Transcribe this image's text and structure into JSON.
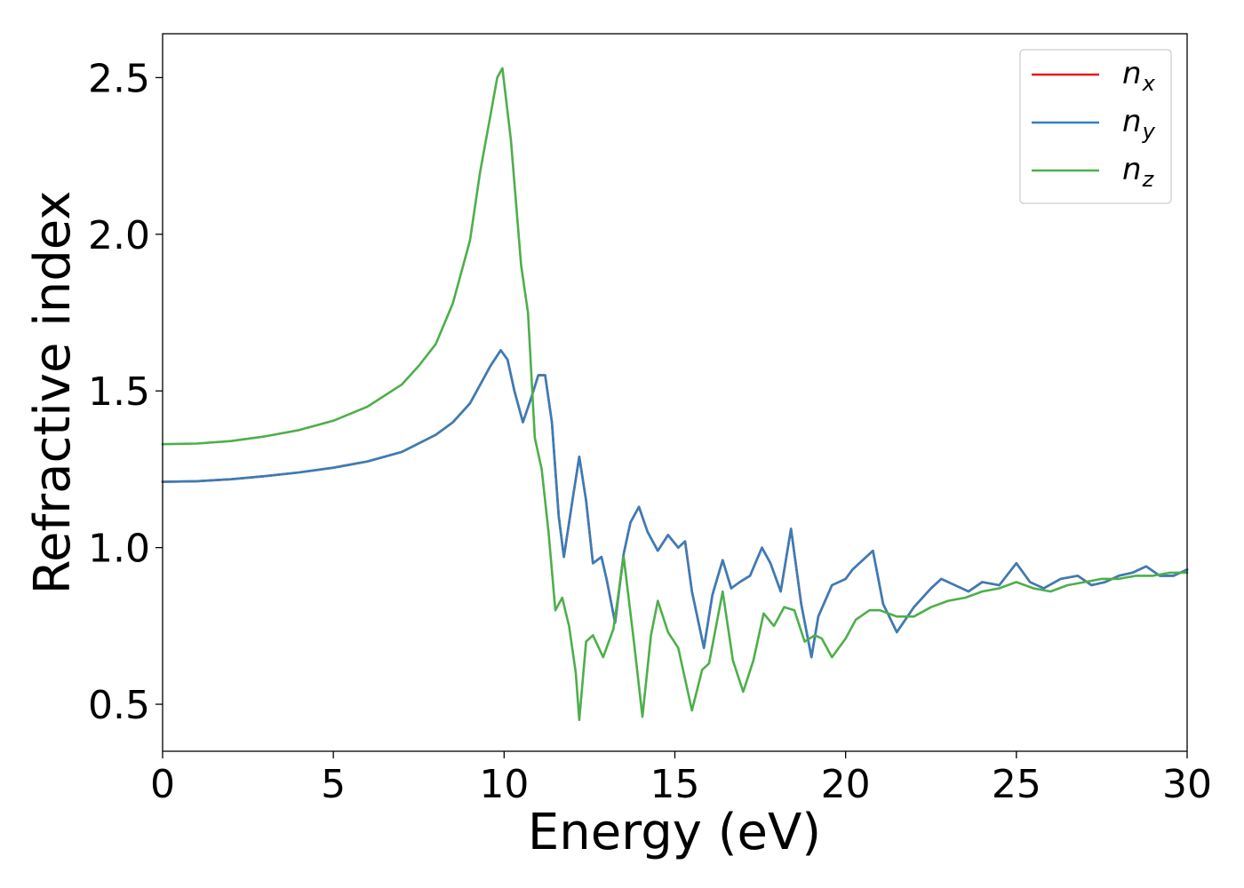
{
  "chart_data": {
    "type": "line",
    "xlabel": "Energy (eV)",
    "ylabel": "Refractive index",
    "xlim": [
      0,
      30
    ],
    "ylim": [
      0.35,
      2.64
    ],
    "xticks": [
      0,
      5,
      10,
      15,
      20,
      25,
      30
    ],
    "xtick_labels": [
      "0",
      "5",
      "10",
      "15",
      "20",
      "25",
      "30"
    ],
    "yticks": [
      0.5,
      1.0,
      1.5,
      2.0,
      2.5
    ],
    "ytick_labels": [
      "0.5",
      "1.0",
      "1.5",
      "2.0",
      "2.5"
    ],
    "grid": false,
    "legend_position": "top-right",
    "series": [
      {
        "name": "n",
        "subscript": "x",
        "color": "#e41a1c",
        "x": [
          0,
          1,
          2,
          3,
          4,
          5,
          6,
          7,
          8,
          8.5,
          9,
          9.3,
          9.6,
          9.9,
          10.1,
          10.3,
          10.55,
          10.8,
          11,
          11.2,
          11.4,
          11.6,
          11.75,
          12,
          12.2,
          12.4,
          12.6,
          12.85,
          13,
          13.25,
          13.5,
          13.7,
          13.95,
          14.2,
          14.5,
          14.8,
          15.1,
          15.3,
          15.5,
          15.85,
          16.1,
          16.4,
          16.65,
          16.9,
          17.2,
          17.55,
          17.8,
          18.1,
          18.4,
          18.7,
          19,
          19.2,
          19.6,
          20,
          20.2,
          20.5,
          20.8,
          21.1,
          21.5,
          22,
          22.5,
          22.8,
          23.2,
          23.6,
          24,
          24.5,
          25,
          25.4,
          25.8,
          26.3,
          26.8,
          27.2,
          27.6,
          28,
          28.4,
          28.8,
          29.2,
          29.6,
          30
        ],
        "y": [
          1.21,
          1.212,
          1.218,
          1.228,
          1.24,
          1.255,
          1.275,
          1.305,
          1.36,
          1.4,
          1.46,
          1.52,
          1.58,
          1.63,
          1.6,
          1.5,
          1.4,
          1.48,
          1.55,
          1.55,
          1.4,
          1.1,
          0.97,
          1.15,
          1.29,
          1.15,
          0.95,
          0.97,
          0.9,
          0.76,
          0.98,
          1.08,
          1.13,
          1.05,
          0.99,
          1.04,
          1.0,
          1.02,
          0.86,
          0.68,
          0.85,
          0.96,
          0.87,
          0.89,
          0.91,
          1.0,
          0.95,
          0.86,
          1.06,
          0.82,
          0.65,
          0.78,
          0.88,
          0.9,
          0.93,
          0.96,
          0.99,
          0.82,
          0.73,
          0.81,
          0.87,
          0.9,
          0.88,
          0.86,
          0.89,
          0.88,
          0.95,
          0.89,
          0.87,
          0.9,
          0.91,
          0.88,
          0.89,
          0.91,
          0.92,
          0.94,
          0.91,
          0.91,
          0.93
        ]
      },
      {
        "name": "n",
        "subscript": "y",
        "color": "#377eb8",
        "x": [
          0,
          1,
          2,
          3,
          4,
          5,
          6,
          7,
          8,
          8.5,
          9,
          9.3,
          9.6,
          9.9,
          10.1,
          10.3,
          10.55,
          10.8,
          11,
          11.2,
          11.4,
          11.6,
          11.75,
          12,
          12.2,
          12.4,
          12.6,
          12.85,
          13,
          13.25,
          13.5,
          13.7,
          13.95,
          14.2,
          14.5,
          14.8,
          15.1,
          15.3,
          15.5,
          15.85,
          16.1,
          16.4,
          16.65,
          16.9,
          17.2,
          17.55,
          17.8,
          18.1,
          18.4,
          18.7,
          19,
          19.2,
          19.6,
          20,
          20.2,
          20.5,
          20.8,
          21.1,
          21.5,
          22,
          22.5,
          22.8,
          23.2,
          23.6,
          24,
          24.5,
          25,
          25.4,
          25.8,
          26.3,
          26.8,
          27.2,
          27.6,
          28,
          28.4,
          28.8,
          29.2,
          29.6,
          30
        ],
        "y": [
          1.21,
          1.212,
          1.218,
          1.228,
          1.24,
          1.255,
          1.275,
          1.305,
          1.36,
          1.4,
          1.46,
          1.52,
          1.58,
          1.63,
          1.6,
          1.5,
          1.4,
          1.48,
          1.55,
          1.55,
          1.4,
          1.1,
          0.97,
          1.15,
          1.29,
          1.15,
          0.95,
          0.97,
          0.9,
          0.76,
          0.98,
          1.08,
          1.13,
          1.05,
          0.99,
          1.04,
          1.0,
          1.02,
          0.86,
          0.68,
          0.85,
          0.96,
          0.87,
          0.89,
          0.91,
          1.0,
          0.95,
          0.86,
          1.06,
          0.82,
          0.65,
          0.78,
          0.88,
          0.9,
          0.93,
          0.96,
          0.99,
          0.82,
          0.73,
          0.81,
          0.87,
          0.9,
          0.88,
          0.86,
          0.89,
          0.88,
          0.95,
          0.89,
          0.87,
          0.9,
          0.91,
          0.88,
          0.89,
          0.91,
          0.92,
          0.94,
          0.91,
          0.91,
          0.93
        ]
      },
      {
        "name": "n",
        "subscript": "z",
        "color": "#4daf4a",
        "x": [
          0,
          1,
          2,
          3,
          4,
          5,
          6,
          7,
          7.5,
          8,
          8.5,
          9,
          9.3,
          9.6,
          9.8,
          9.95,
          10.2,
          10.5,
          10.7,
          10.9,
          11.1,
          11.3,
          11.5,
          11.7,
          11.9,
          12.1,
          12.2,
          12.4,
          12.6,
          12.9,
          13.2,
          13.5,
          13.8,
          14.05,
          14.3,
          14.5,
          14.8,
          15.1,
          15.5,
          15.8,
          16.0,
          16.4,
          16.7,
          17.0,
          17.3,
          17.6,
          17.9,
          18.2,
          18.5,
          18.8,
          19.1,
          19.3,
          19.6,
          20.0,
          20.3,
          20.7,
          21.0,
          21.5,
          22.0,
          22.5,
          23.0,
          23.5,
          24.0,
          24.5,
          25.0,
          25.5,
          26.0,
          26.5,
          27.0,
          27.5,
          28.0,
          28.5,
          29.0,
          29.5,
          30
        ],
        "y": [
          1.33,
          1.332,
          1.34,
          1.355,
          1.375,
          1.405,
          1.45,
          1.52,
          1.58,
          1.65,
          1.78,
          1.98,
          2.2,
          2.38,
          2.5,
          2.53,
          2.3,
          1.9,
          1.75,
          1.35,
          1.25,
          1.05,
          0.8,
          0.84,
          0.75,
          0.6,
          0.45,
          0.7,
          0.72,
          0.65,
          0.74,
          0.97,
          0.7,
          0.46,
          0.72,
          0.83,
          0.73,
          0.68,
          0.48,
          0.61,
          0.63,
          0.86,
          0.64,
          0.54,
          0.64,
          0.79,
          0.75,
          0.81,
          0.8,
          0.7,
          0.72,
          0.71,
          0.65,
          0.71,
          0.77,
          0.8,
          0.8,
          0.78,
          0.78,
          0.81,
          0.83,
          0.84,
          0.86,
          0.87,
          0.89,
          0.87,
          0.86,
          0.88,
          0.89,
          0.9,
          0.9,
          0.91,
          0.91,
          0.92,
          0.92
        ]
      }
    ]
  }
}
